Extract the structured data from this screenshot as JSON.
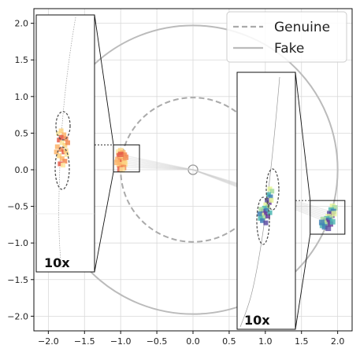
{
  "chart_data": {
    "type": "scatter",
    "xlim": [
      -2.2,
      2.2
    ],
    "ylim": [
      -2.2,
      2.2
    ],
    "xticks": [
      -2.0,
      -1.5,
      -1.0,
      -0.5,
      0.0,
      0.5,
      1.0,
      1.5,
      2.0
    ],
    "yticks": [
      -2.0,
      -1.5,
      -1.0,
      -0.5,
      0.0,
      0.5,
      1.0,
      1.5,
      2.0
    ],
    "xtick_labels": [
      "−2.0",
      "−1.5",
      "−1.0",
      "−0.5",
      "0.0",
      "0.5",
      "1.0",
      "1.5",
      "2.0"
    ],
    "ytick_labels": [
      "−2.0",
      "−1.5",
      "−1.0",
      "−0.5",
      "0.0",
      "0.5",
      "1.0",
      "1.5",
      "2.0"
    ],
    "grid": true,
    "legend_position": "top-right",
    "series": [
      {
        "name": "Genuine",
        "shape": "circle",
        "center": [
          0,
          0
        ],
        "radius": 1.0,
        "line": "dashed",
        "color": "#aaaaaa"
      },
      {
        "name": "Fake",
        "shape": "circle",
        "center": [
          0,
          0
        ],
        "radius": 2.0,
        "line": "solid",
        "color": "#bbbbbb"
      }
    ],
    "clusters": [
      {
        "center": [
          -0.98,
          0.12
        ],
        "palette": [
          "#fde9a0",
          "#fdd27f",
          "#fbb46a",
          "#f28a52",
          "#e55a46"
        ],
        "points": [
          [
            -1.03,
            0.24
          ],
          [
            -1.0,
            0.26
          ],
          [
            -0.97,
            0.23
          ],
          [
            -0.95,
            0.2
          ],
          [
            -1.02,
            0.19
          ],
          [
            -0.99,
            0.17
          ],
          [
            -0.96,
            0.15
          ],
          [
            -1.04,
            0.14
          ],
          [
            -1.0,
            0.12
          ],
          [
            -0.97,
            0.1
          ],
          [
            -0.94,
            0.08
          ],
          [
            -1.02,
            0.07
          ],
          [
            -0.99,
            0.05
          ],
          [
            -0.96,
            0.03
          ],
          [
            -1.01,
            0.01
          ],
          [
            -0.98,
            0.0
          ],
          [
            -0.95,
            0.11
          ],
          [
            -1.05,
            0.1
          ],
          [
            -0.93,
            0.17
          ],
          [
            -1.0,
            0.21
          ]
        ]
      },
      {
        "center": [
          1.9,
          -0.65
        ],
        "palette": [
          "#e6f598",
          "#a6dba0",
          "#4ab5b0",
          "#3f7fb5",
          "#5e4fa2",
          "#6a3d9a"
        ],
        "points": [
          [
            1.93,
            -0.5
          ],
          [
            1.96,
            -0.52
          ],
          [
            1.91,
            -0.55
          ],
          [
            1.94,
            -0.57
          ],
          [
            1.89,
            -0.6
          ],
          [
            1.92,
            -0.62
          ],
          [
            1.87,
            -0.64
          ],
          [
            1.9,
            -0.66
          ],
          [
            1.85,
            -0.67
          ],
          [
            1.88,
            -0.69
          ],
          [
            1.83,
            -0.7
          ],
          [
            1.86,
            -0.72
          ],
          [
            1.81,
            -0.73
          ],
          [
            1.84,
            -0.75
          ],
          [
            1.79,
            -0.76
          ],
          [
            1.82,
            -0.78
          ],
          [
            1.87,
            -0.8
          ],
          [
            1.9,
            -0.74
          ],
          [
            1.95,
            -0.6
          ],
          [
            1.8,
            -0.68
          ],
          [
            1.93,
            -0.71
          ],
          [
            1.78,
            -0.72
          ]
        ]
      }
    ],
    "insets": [
      {
        "label": "10x",
        "target_box": [
          -1.1,
          -0.03,
          -0.74,
          0.34
        ]
      },
      {
        "label": "10x",
        "target_box": [
          1.62,
          -0.88,
          2.1,
          -0.42
        ]
      }
    ],
    "origin_marker": [
      0,
      0
    ]
  }
}
